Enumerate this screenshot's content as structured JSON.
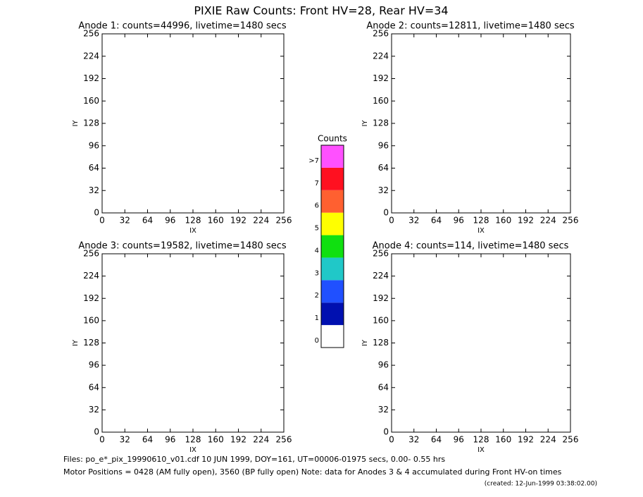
{
  "header": {
    "title": "PIXIE Raw Counts:  Front HV=28, Rear HV=34"
  },
  "chart_data": [
    {
      "type": "heatmap",
      "title": "Anode 1: counts=44996, livetime=1480 secs",
      "xlabel": "IX",
      "ylabel": "IY",
      "xlim": [
        0,
        256
      ],
      "ylim": [
        0,
        256
      ],
      "xticks": [
        0,
        32,
        64,
        96,
        128,
        160,
        192,
        224,
        256
      ],
      "yticks": [
        0,
        32,
        64,
        96,
        128,
        160,
        192,
        224,
        256
      ]
    },
    {
      "type": "heatmap",
      "title": "Anode 2: counts=12811, livetime=1480 secs",
      "xlabel": "IX",
      "ylabel": "IY",
      "xlim": [
        0,
        256
      ],
      "ylim": [
        0,
        256
      ],
      "xticks": [
        0,
        32,
        64,
        96,
        128,
        160,
        192,
        224,
        256
      ],
      "yticks": [
        0,
        32,
        64,
        96,
        128,
        160,
        192,
        224,
        256
      ]
    },
    {
      "type": "heatmap",
      "title": "Anode 3: counts=19582, livetime=1480 secs",
      "xlabel": "IX",
      "ylabel": "IY",
      "xlim": [
        0,
        256
      ],
      "ylim": [
        0,
        256
      ],
      "xticks": [
        0,
        32,
        64,
        96,
        128,
        160,
        192,
        224,
        256
      ],
      "yticks": [
        0,
        32,
        64,
        96,
        128,
        160,
        192,
        224,
        256
      ]
    },
    {
      "type": "heatmap",
      "title": "Anode 4: counts=114, livetime=1480 secs",
      "xlabel": "IX",
      "ylabel": "IY",
      "xlim": [
        0,
        256
      ],
      "ylim": [
        0,
        256
      ],
      "xticks": [
        0,
        32,
        64,
        96,
        128,
        160,
        192,
        224,
        256
      ],
      "yticks": [
        0,
        32,
        64,
        96,
        128,
        160,
        192,
        224,
        256
      ]
    }
  ],
  "colorbar": {
    "title": "Counts",
    "labels": [
      "0",
      "1",
      "2",
      "3",
      "4",
      "5",
      "6",
      "7",
      ">7"
    ],
    "colors": [
      "#ffffff",
      "#0010b0",
      "#2050ff",
      "#20c8c8",
      "#10e010",
      "#ffff00",
      "#ff6030",
      "#ff1020",
      "#ff50ff"
    ]
  },
  "footer": {
    "files": "Files: po_e*_pix_19990610_v01.cdf    10 JUN 1999, DOY=161, UT=00006-01975 secs,  0.00- 0.55 hrs",
    "motor": "Motor Positions = 0428 (AM fully open), 3560 (BP fully open)    Note: data for Anodes 3 & 4 accumulated during Front HV-on times",
    "created": "(created: 12-Jun-1999 03:38:02.00)"
  }
}
